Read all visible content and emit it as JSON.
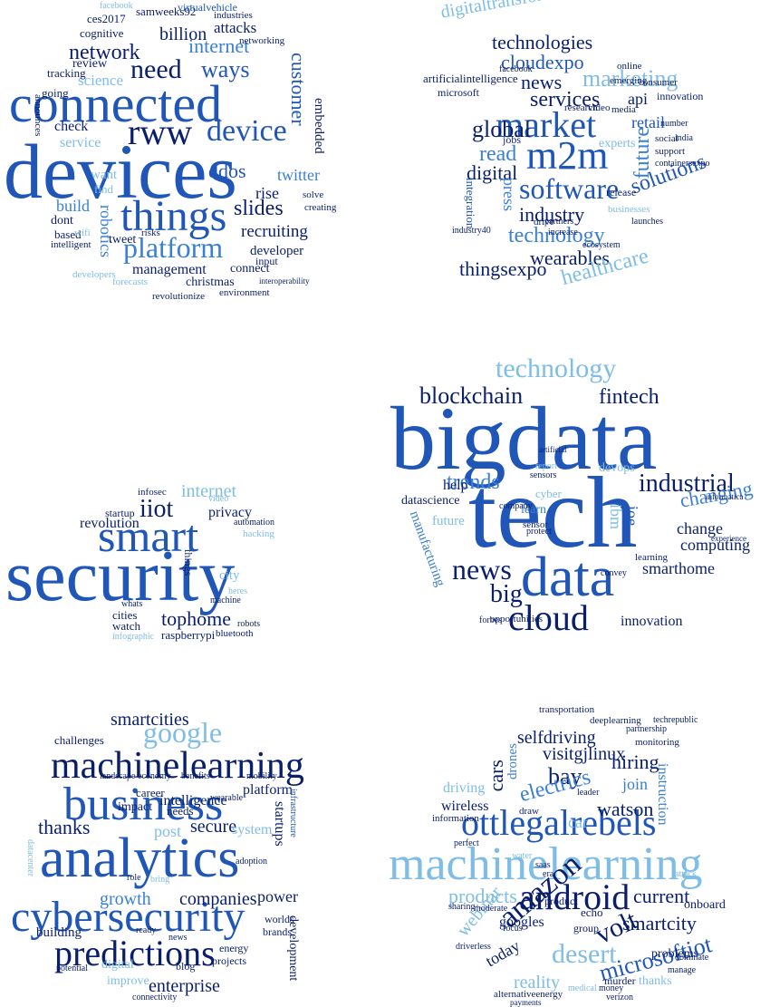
{
  "clouds": [
    {
      "id": "cloud-1",
      "words": [
        "devices",
        "connected",
        "things",
        "rww",
        "platform",
        "device",
        "need",
        "network",
        "ways",
        "internet",
        "customer",
        "embedded",
        "slides",
        "ddos",
        "recruiting",
        "twitter",
        "rise",
        "developer",
        "management",
        "christmas",
        "connect",
        "environment",
        "revolutionize",
        "robotics",
        "dont",
        "build",
        "based",
        "intelligent",
        "check",
        "service",
        "science",
        "review",
        "going",
        "tracking",
        "cognitive",
        "ces2017",
        "samweeks92",
        "billion",
        "attacks",
        "networking",
        "virtualvehicle",
        "industries",
        "tweet",
        "input",
        "solve",
        "creating",
        "want",
        "find",
        "risks",
        "developers",
        "forecasts",
        "announces",
        "wifi",
        "facebook",
        "interoperability"
      ]
    },
    {
      "id": "cloud-2",
      "words": [
        "digitaltransformation",
        "technologies",
        "cloudexpo",
        "news",
        "marketing",
        "market",
        "services",
        "global",
        "read",
        "m2m",
        "digital",
        "software",
        "industry",
        "solutions",
        "technology",
        "wearables",
        "thingsexpo",
        "healthcare",
        "retail",
        "future",
        "api",
        "jobs",
        "press",
        "release",
        "drive",
        "experts",
        "artificialintelligence",
        "microsoft",
        "innovation",
        "research",
        "ecosystem",
        "increase",
        "social",
        "support",
        "video",
        "media",
        "online",
        "emerging",
        "consumer",
        "partners",
        "businesses",
        "launches",
        "integration",
        "number",
        "industry40",
        "facebook",
        "containersexpo",
        "india"
      ]
    },
    {
      "id": "cloud-3",
      "words": [
        "security",
        "smart",
        "iiot",
        "internet",
        "privacy",
        "revolution",
        "startup",
        "tophome",
        "cities",
        "city",
        "watch",
        "raspberrypi",
        "bluetooth",
        "things",
        "infographic",
        "video",
        "machine",
        "whats",
        "robots",
        "heres",
        "automation",
        "hacking",
        "infosec"
      ]
    },
    {
      "id": "cloud-4",
      "words": [
        "bigdata",
        "tech",
        "data",
        "technology",
        "blockchain",
        "fintech",
        "trends",
        "industrial",
        "news",
        "cloud",
        "big",
        "help",
        "datascience",
        "devops",
        "changing",
        "change",
        "computing",
        "smarthome",
        "innovation",
        "manufacturing",
        "future",
        "opportunities",
        "ibm",
        "ioe",
        "learn",
        "sensor",
        "cyber",
        "forbes",
        "company",
        "protect",
        "convey",
        "learning",
        "report",
        "experience",
        "informatica",
        "sensors",
        "artificial"
      ]
    },
    {
      "id": "cloud-5",
      "words": [
        "analytics",
        "business",
        "machinelearning",
        "cybersecurity",
        "predictions",
        "google",
        "smartcities",
        "thanks",
        "secure",
        "system",
        "growth",
        "companies",
        "enterprise",
        "intelligence",
        "platform",
        "impact",
        "needs",
        "challenges",
        "career",
        "post",
        "power",
        "startups",
        "building",
        "worlds",
        "brands",
        "development",
        "projects",
        "energy",
        "blog",
        "digital",
        "improve",
        "potential",
        "connectivity",
        "news",
        "wearable",
        "benefits",
        "landscape",
        "economy",
        "adoption",
        "infrastructure",
        "mobility",
        "bring",
        "role",
        "ready",
        "datacenter"
      ]
    },
    {
      "id": "cloud-6",
      "words": [
        "machinelearning",
        "ottlegalrebels",
        "android",
        "amazon",
        "desert",
        "volt",
        "smartcity",
        "microsoftiot",
        "webinar",
        "today",
        "reality",
        "products",
        "current",
        "watson",
        "hiring",
        "join",
        "bay",
        "visitgjlinux",
        "selfdriving",
        "electrics",
        "cars",
        "drones",
        "driving",
        "wireless",
        "googles",
        "car",
        "echo",
        "onboard",
        "thanks",
        "problems",
        "murder",
        "product",
        "group",
        "information",
        "deeplearning",
        "monitoring",
        "transportation",
        "instruction",
        "verizon",
        "alternativeenergy",
        "payments",
        "medical",
        "focus",
        "leader",
        "draw",
        "water",
        "sharing",
        "driverless",
        "era",
        "attack",
        "saas",
        "perfect",
        "partnership",
        "techrepublic",
        "dominate",
        "manage",
        "moderate",
        "money"
      ]
    }
  ]
}
